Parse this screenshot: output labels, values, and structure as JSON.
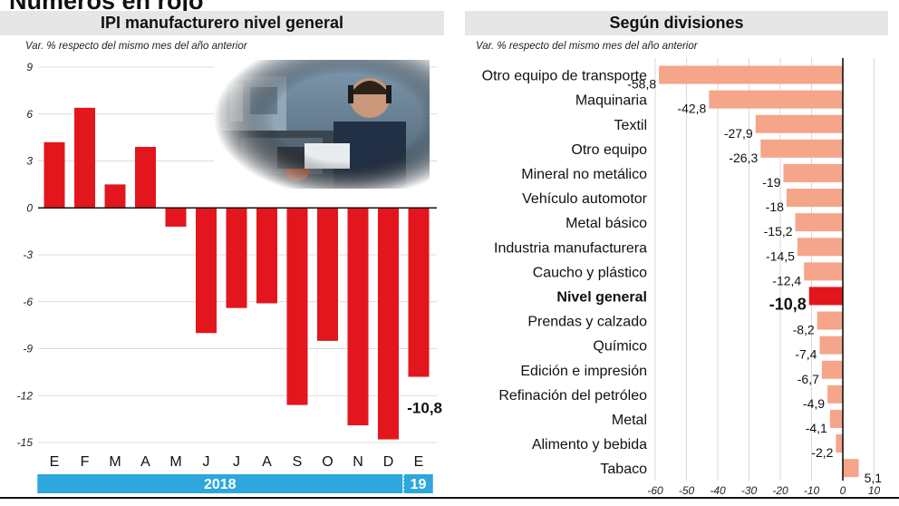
{
  "headline": "Números en rojo",
  "left_panel": {
    "title": "IPI manufacturero nivel general",
    "subtitle": "Var. % respecto del mismo mes del año anterior"
  },
  "right_panel": {
    "title": "Según divisiones",
    "subtitle": "Var. % respecto del mismo mes del año anterior"
  },
  "colors": {
    "red": "#e3161e",
    "salmon": "#f4a58a",
    "year_band": "#2ea7dd"
  },
  "chart_data": [
    {
      "type": "bar",
      "title": "IPI manufacturero nivel general",
      "categories": [
        "E",
        "F",
        "M",
        "A",
        "M",
        "J",
        "J",
        "A",
        "S",
        "O",
        "N",
        "D",
        "E"
      ],
      "values": [
        4.2,
        6.4,
        1.5,
        3.9,
        -1.2,
        -8.0,
        -6.4,
        -6.1,
        -12.6,
        -8.5,
        -13.9,
        -14.8,
        -10.8
      ],
      "ylim": [
        -15,
        9
      ],
      "yticks": [
        "9",
        "6",
        "3",
        "0",
        "-3",
        "-6",
        "-9",
        "-12",
        "-15"
      ],
      "data_labels": [
        {
          "index": 12,
          "text": "-10,8"
        }
      ],
      "year_groups": [
        {
          "label": "2018",
          "from": 0,
          "to": 11
        },
        {
          "label": "19",
          "from": 12,
          "to": 12
        }
      ],
      "grid": true
    },
    {
      "type": "bar",
      "orientation": "horizontal",
      "title": "Según divisiones",
      "categories": [
        "Otro equipo de transporte",
        "Maquinaria",
        "Textil",
        "Otro equipo",
        "Mineral no metálico",
        "Vehículo automotor",
        "Metal básico",
        "Industria manufacturera",
        "Caucho y plástico",
        "Nivel general",
        "Prendas y calzado",
        "Químico",
        "Edición e impresión",
        "Refinación del petróleo",
        "Metal",
        "Alimento y bebida",
        "Tabaco"
      ],
      "values": [
        -58.8,
        -42.8,
        -27.9,
        -26.3,
        -19,
        -18,
        -15.2,
        -14.5,
        -12.4,
        -10.8,
        -8.2,
        -7.4,
        -6.7,
        -4.9,
        -4.1,
        -2.2,
        5.1
      ],
      "value_labels": [
        "-58,8",
        "-42,8",
        "-27,9",
        "-26,3",
        "-19",
        "-18",
        "-15,2",
        "-14,5",
        "-12,4",
        "-10,8",
        "-8,2",
        "-7,4",
        "-6,7",
        "-4,9",
        "-4,1",
        "-2,2",
        "5,1"
      ],
      "highlight_index": 9,
      "xlim": [
        -60,
        12
      ],
      "xticks": [
        "-60",
        "-50",
        "-40",
        "-30",
        "-20",
        "-10",
        "0",
        "10"
      ],
      "grid": true
    }
  ]
}
